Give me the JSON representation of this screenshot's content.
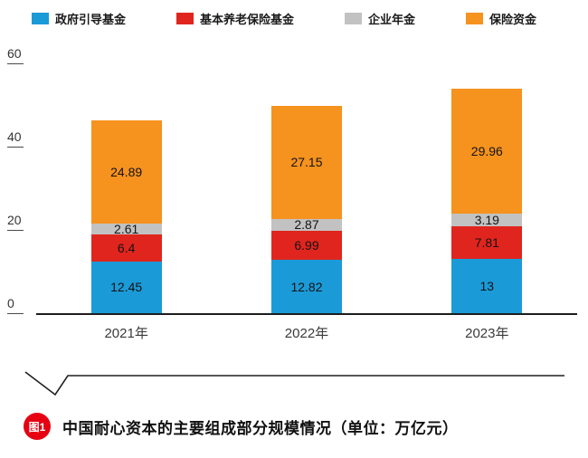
{
  "chart_data": {
    "type": "bar",
    "stacked": true,
    "title": "中国耐心资本的主要组成部分规模情况（单位：万亿元）",
    "categories": [
      "2021年",
      "2022年",
      "2023年"
    ],
    "series": [
      {
        "name": "政府引导基金",
        "color": "#1b9ad8",
        "values": [
          12.45,
          12.82,
          13
        ],
        "labels": [
          "12.45",
          "12.82",
          "13"
        ]
      },
      {
        "name": "基本养老保险基金",
        "color": "#e0251e",
        "values": [
          6.4,
          6.99,
          7.81
        ],
        "labels": [
          "6.4",
          "6.99",
          "7.81"
        ]
      },
      {
        "name": "企业年金",
        "color": "#c2c2c2",
        "values": [
          2.61,
          2.87,
          3.19
        ],
        "labels": [
          "2.61",
          "2.87",
          "3.19"
        ]
      },
      {
        "name": "保险资金",
        "color": "#f6921e",
        "values": [
          24.89,
          27.15,
          29.96
        ],
        "labels": [
          "24.89",
          "27.15",
          "29.96"
        ]
      }
    ],
    "xlabel": "",
    "ylabel": "",
    "ylim": [
      0,
      60
    ],
    "yticks": [
      0,
      20,
      40,
      60
    ],
    "grid": false,
    "legend_position": "top"
  },
  "caption": {
    "badge": "图1",
    "title": "中国耐心资本的主要组成部分规模情况（单位：万亿元）"
  },
  "colors": {
    "badge_red": "#e60012",
    "axis": "#1d1d1d"
  }
}
